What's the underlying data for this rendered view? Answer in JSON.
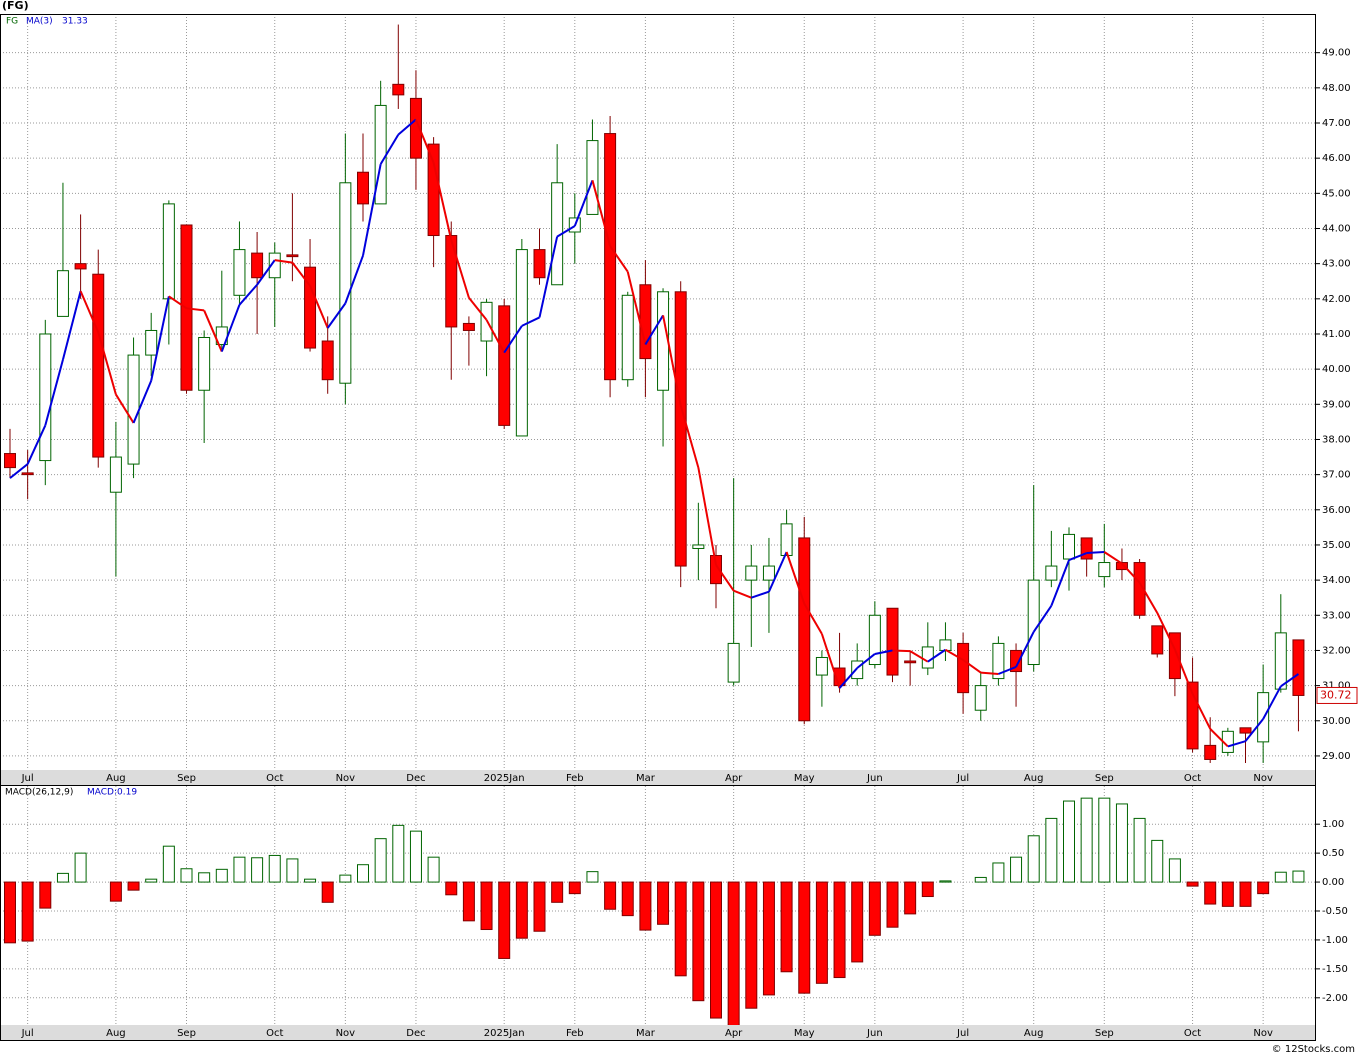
{
  "chart_data": [
    {
      "type": "candlestick",
      "title": "(FG)",
      "ticker": "FG",
      "categories": [
        null,
        "Jul",
        null,
        null,
        null,
        null,
        "Aug",
        null,
        null,
        null,
        "Sep",
        null,
        null,
        null,
        null,
        "Oct",
        null,
        null,
        null,
        "Nov",
        null,
        null,
        null,
        "Dec",
        null,
        null,
        null,
        null,
        "2025Jan",
        null,
        null,
        null,
        "Feb",
        null,
        null,
        null,
        "Mar",
        null,
        null,
        null,
        null,
        "Apr",
        null,
        null,
        null,
        "May",
        null,
        null,
        null,
        "Jun",
        null,
        null,
        null,
        null,
        "Jul",
        null,
        null,
        null,
        "Aug",
        null,
        null,
        null,
        "Sep",
        null,
        null,
        null,
        null,
        "Oct",
        null,
        null,
        null,
        "Nov",
        null,
        null
      ],
      "open": [
        37.6,
        37.05,
        37.4,
        41.5,
        43.0,
        42.7,
        36.5,
        37.3,
        40.4,
        42.0,
        44.1,
        39.4,
        40.7,
        42.1,
        43.3,
        42.6,
        43.25,
        42.9,
        40.8,
        39.6,
        45.6,
        44.7,
        48.1,
        47.7,
        46.4,
        43.8,
        41.3,
        40.8,
        41.8,
        38.1,
        43.4,
        42.4,
        43.9,
        44.4,
        46.7,
        39.7,
        42.4,
        39.4,
        42.2,
        34.9,
        34.7,
        31.1,
        34.0,
        34.0,
        34.7,
        35.2,
        31.3,
        31.5,
        31.2,
        31.6,
        33.2,
        31.7,
        31.5,
        32.0,
        32.2,
        30.3,
        31.2,
        32.0,
        31.6,
        34.0,
        34.6,
        35.2,
        34.1,
        34.5,
        34.5,
        32.7,
        32.5,
        31.1,
        29.3,
        29.1,
        29.8,
        29.4,
        30.9,
        32.3
      ],
      "high": [
        38.3,
        37.7,
        41.4,
        45.3,
        44.4,
        43.4,
        38.5,
        40.9,
        41.6,
        44.8,
        44.1,
        41.1,
        42.8,
        44.2,
        43.9,
        43.6,
        45.0,
        43.7,
        41.5,
        46.7,
        46.7,
        48.2,
        49.8,
        48.5,
        46.6,
        44.2,
        41.5,
        42.0,
        42.0,
        43.7,
        44.0,
        46.4,
        45.0,
        47.1,
        47.2,
        42.2,
        43.1,
        42.3,
        42.5,
        36.2,
        35.0,
        36.9,
        35.0,
        35.2,
        36.0,
        35.8,
        32.0,
        32.5,
        32.2,
        33.4,
        33.2,
        32.0,
        32.8,
        32.8,
        32.5,
        31.4,
        32.4,
        32.2,
        36.7,
        35.4,
        35.5,
        35.2,
        35.6,
        34.9,
        34.6,
        32.7,
        32.5,
        31.8,
        30.1,
        29.8,
        29.8,
        31.6,
        33.6,
        32.3
      ],
      "low": [
        36.9,
        36.3,
        36.7,
        41.5,
        42.0,
        37.2,
        34.1,
        36.9,
        39.8,
        40.7,
        39.3,
        37.9,
        40.5,
        41.8,
        41.0,
        41.2,
        42.5,
        40.5,
        39.3,
        39.0,
        44.2,
        44.8,
        47.4,
        45.1,
        42.9,
        39.7,
        40.1,
        39.8,
        38.3,
        38.1,
        42.4,
        42.4,
        43.0,
        44.5,
        39.2,
        39.5,
        39.2,
        37.8,
        33.8,
        34.0,
        33.2,
        31.0,
        32.1,
        32.5,
        34.7,
        29.9,
        30.4,
        30.8,
        31.0,
        31.5,
        31.1,
        31.0,
        31.3,
        31.7,
        30.2,
        30.0,
        31.0,
        30.4,
        31.4,
        33.8,
        33.7,
        34.1,
        33.8,
        34.0,
        32.9,
        31.8,
        30.7,
        29.1,
        28.8,
        29.0,
        28.8,
        28.8,
        30.8,
        29.7
      ],
      "close": [
        37.2,
        37.0,
        41.0,
        42.8,
        42.85,
        37.5,
        37.5,
        40.4,
        41.1,
        44.7,
        39.4,
        40.9,
        41.2,
        43.4,
        42.6,
        43.3,
        43.2,
        40.6,
        39.7,
        45.3,
        44.7,
        47.5,
        47.8,
        46.0,
        43.8,
        41.2,
        41.1,
        41.9,
        38.4,
        43.4,
        42.6,
        45.3,
        44.3,
        46.5,
        39.7,
        42.1,
        40.3,
        42.2,
        34.4,
        35.0,
        33.9,
        32.2,
        34.4,
        34.4,
        35.6,
        30.0,
        31.8,
        31.0,
        31.7,
        33.0,
        31.3,
        31.65,
        32.1,
        32.3,
        30.8,
        31.0,
        32.2,
        31.4,
        34.0,
        34.4,
        35.3,
        34.6,
        34.5,
        34.3,
        33.0,
        31.9,
        31.2,
        29.2,
        28.9,
        29.7,
        29.65,
        30.8,
        32.5,
        30.72
      ],
      "ma": {
        "name": "MA(3)",
        "values": [
          36.9,
          37.3,
          38.4,
          40.27,
          42.22,
          41.05,
          39.28,
          38.47,
          39.67,
          42.07,
          41.73,
          41.67,
          40.5,
          41.83,
          42.4,
          43.1,
          43.03,
          42.37,
          41.17,
          41.87,
          43.23,
          45.83,
          46.67,
          47.1,
          45.87,
          43.67,
          42.03,
          41.4,
          40.47,
          41.23,
          41.47,
          43.77,
          44.07,
          45.37,
          43.5,
          42.77,
          40.7,
          41.53,
          38.97,
          37.2,
          34.43,
          33.7,
          33.5,
          33.67,
          34.8,
          33.33,
          32.47,
          30.93,
          31.5,
          31.9,
          32.0,
          31.98,
          31.68,
          32.02,
          31.73,
          31.37,
          31.33,
          31.53,
          32.53,
          33.27,
          34.57,
          34.77,
          34.8,
          34.47,
          33.93,
          33.07,
          32.03,
          30.77,
          29.77,
          29.27,
          29.42,
          30.05,
          30.98,
          31.33
        ],
        "up_color": "#0000dd",
        "down_color": "#ee0000"
      },
      "up_color": "#006400",
      "down_color": "#ff0000",
      "ylim": [
        28.6,
        50.1
      ],
      "yticks": [
        {
          "value": 29,
          "label": "29.00"
        },
        {
          "value": 30,
          "label": "30.00"
        },
        {
          "value": 31,
          "label": "31.00"
        },
        {
          "value": 32,
          "label": "32.00"
        },
        {
          "value": 33,
          "label": "33.00"
        },
        {
          "value": 34,
          "label": "34.00"
        },
        {
          "value": 35,
          "label": "35.00"
        },
        {
          "value": 36,
          "label": "36.00"
        },
        {
          "value": 37,
          "label": "37.00"
        },
        {
          "value": 38,
          "label": "38.00"
        },
        {
          "value": 39,
          "label": "39.00"
        },
        {
          "value": 40,
          "label": "40.00"
        },
        {
          "value": 41,
          "label": "41.00"
        },
        {
          "value": 42,
          "label": "42.00"
        },
        {
          "value": 43,
          "label": "43.00"
        },
        {
          "value": 44,
          "label": "44.00"
        },
        {
          "value": 45,
          "label": "45.00"
        },
        {
          "value": 46,
          "label": "46.00"
        },
        {
          "value": 47,
          "label": "47.00"
        },
        {
          "value": 48,
          "label": "48.00"
        },
        {
          "value": 49,
          "label": "49.00"
        }
      ],
      "grid": true
    },
    {
      "type": "bar",
      "name": "MACD(26,12,9)",
      "value_name": "MACD:",
      "values": [
        -1.05,
        -1.02,
        -0.45,
        0.15,
        0.5,
        0.0,
        -0.33,
        -0.14,
        0.05,
        0.62,
        0.23,
        0.16,
        0.22,
        0.43,
        0.42,
        0.46,
        0.4,
        0.05,
        -0.35,
        0.12,
        0.3,
        0.75,
        0.98,
        0.88,
        0.43,
        -0.22,
        -0.67,
        -0.82,
        -1.32,
        -0.97,
        -0.85,
        -0.35,
        -0.2,
        0.18,
        -0.47,
        -0.58,
        -0.83,
        -0.73,
        -1.62,
        -2.05,
        -2.35,
        -2.52,
        -2.18,
        -1.95,
        -1.55,
        -1.92,
        -1.75,
        -1.65,
        -1.38,
        -0.92,
        -0.78,
        -0.55,
        -0.25,
        0.02,
        0.0,
        0.08,
        0.33,
        0.43,
        0.8,
        1.1,
        1.4,
        1.45,
        1.45,
        1.35,
        1.1,
        0.72,
        0.4,
        -0.07,
        -0.38,
        -0.42,
        -0.42,
        -0.2,
        0.17,
        0.19
      ],
      "up_color": "#006400",
      "down_color": "#ff0000",
      "ylim": [
        -2.47,
        1.66
      ],
      "yticks": [
        {
          "value": 1,
          "label": "1.00"
        },
        {
          "value": 0.5,
          "label": "0.50"
        },
        {
          "value": 0,
          "label": "0.00"
        },
        {
          "value": -0.5,
          "label": "-0.50"
        },
        {
          "value": -1,
          "label": "-1.00"
        },
        {
          "value": -1.5,
          "label": "-1.50"
        },
        {
          "value": -2,
          "label": "-2.00"
        }
      ],
      "grid": true
    }
  ],
  "footer": "© 12Stocks.com"
}
